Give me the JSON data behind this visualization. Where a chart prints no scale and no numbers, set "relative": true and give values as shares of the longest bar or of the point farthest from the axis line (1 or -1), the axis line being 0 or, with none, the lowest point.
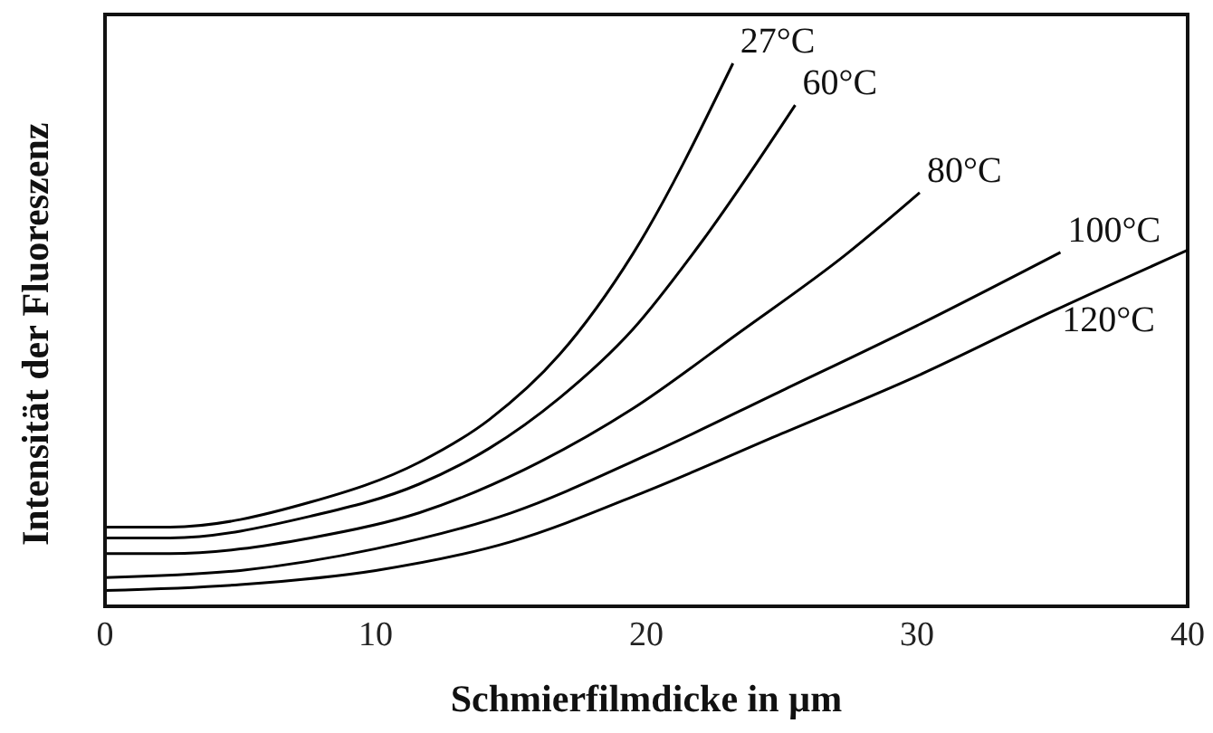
{
  "chart_data": {
    "type": "line",
    "relative": true,
    "xlabel": "Schmierfilmdicke in µm",
    "ylabel": "Intensität der Fluoreszenz",
    "xlim": [
      0,
      40
    ],
    "xticks": [
      0,
      10,
      20,
      30,
      40
    ],
    "marker": "none",
    "line_style": "solid",
    "series": [
      {
        "name": "27°C",
        "color": "#000000",
        "x": [
          0,
          2.4,
          7.6,
          11.6,
          14.2,
          16.8,
          19.5,
          23.2
        ],
        "values": [
          0.146,
          0.146,
          0.192,
          0.265,
          0.344,
          0.464,
          0.649,
          1.0
        ]
      },
      {
        "name": "60°C",
        "color": "#000000",
        "x": [
          0,
          2.4,
          7.6,
          11.6,
          14.2,
          16.8,
          19.5,
          22.1,
          25.5
        ],
        "values": [
          0.126,
          0.126,
          0.166,
          0.225,
          0.291,
          0.384,
          0.51,
          0.675,
          0.923
        ]
      },
      {
        "name": "80°C",
        "color": "#000000",
        "x": [
          0,
          2.4,
          7.6,
          11.6,
          15.5,
          19.5,
          23.4,
          27.4,
          30.1
        ],
        "values": [
          0.097,
          0.097,
          0.126,
          0.172,
          0.252,
          0.364,
          0.503,
          0.649,
          0.762
        ]
      },
      {
        "name": "100°C",
        "color": "#000000",
        "x": [
          0,
          5,
          10,
          15,
          20,
          25,
          30,
          35.3
        ],
        "values": [
          0.053,
          0.066,
          0.106,
          0.172,
          0.278,
          0.397,
          0.517,
          0.652
        ]
      },
      {
        "name": "120°C",
        "color": "#000000",
        "x": [
          0,
          5,
          10,
          15,
          20,
          25,
          30,
          35,
          40
        ],
        "values": [
          0.029,
          0.04,
          0.066,
          0.119,
          0.212,
          0.318,
          0.424,
          0.543,
          0.656
        ]
      }
    ]
  }
}
